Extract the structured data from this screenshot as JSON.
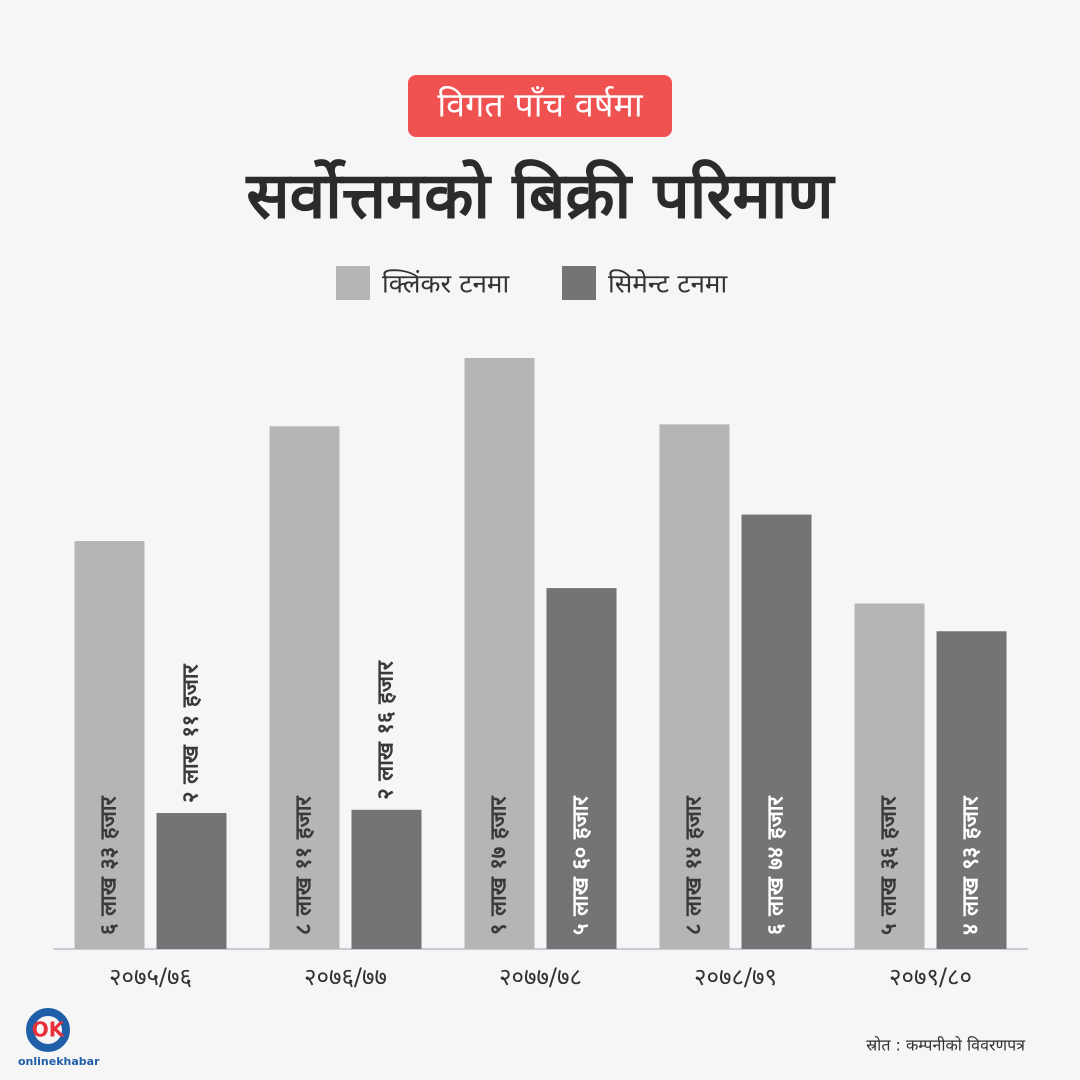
{
  "badge": "विगत पाँच वर्षमा",
  "chart_data": {
    "type": "bar",
    "title": "सर्वोत्तमको बिक्री परिमाण",
    "categories": [
      "२०७५/७६",
      "२०७६/७७",
      "२०७७/७८",
      "२०७८/७९",
      "२०७९/८०"
    ],
    "series": [
      {
        "name": "क्लिंकर टनमा",
        "color": "#b5b5b5",
        "values": [
          633000,
          811000,
          917000,
          814000,
          536000
        ],
        "value_labels": [
          "६ लाख ३३ हजार",
          "८ लाख ११ हजार",
          "९ लाख १७ हजार",
          "८ लाख १४ हजार",
          "५ लाख ३६ हजार"
        ]
      },
      {
        "name": "सिमेन्ट टनमा",
        "color": "#727476",
        "values": [
          211000,
          216000,
          560000,
          674000,
          493000
        ],
        "value_labels": [
          "२ लाख ११ हजार",
          "२ लाख १६ हजार",
          "५ लाख ६० हजार",
          "६ लाख ७४ हजार",
          "४ लाख ९३ हजार"
        ]
      }
    ]
  },
  "source": "स्रोत : कम्पनीको विवरणपत्र",
  "logo": {
    "mark": "OK",
    "text": "onlinekhabar"
  }
}
